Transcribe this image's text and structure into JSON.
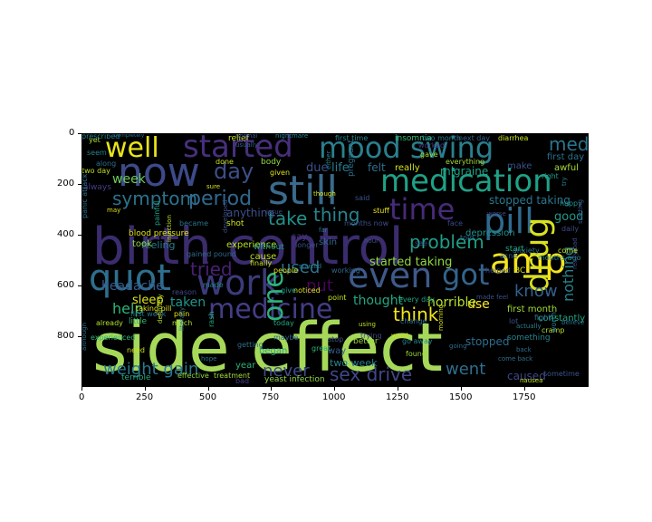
{
  "image": {
    "x_ticks": [
      "0",
      "250",
      "500",
      "750",
      "1000",
      "1250",
      "1500",
      "1750"
    ],
    "y_ticks": [
      "0",
      "200",
      "400",
      "600",
      "800"
    ],
    "background_color": "#000000",
    "words": [
      {
        "text": "side effect",
        "color": "#a6d95a"
      },
      {
        "text": "birth control",
        "color": "#3b2c6e"
      },
      {
        "text": "amp",
        "color": "#f5e31f"
      },
      {
        "text": "pill",
        "color": "#2f6a8e"
      },
      {
        "text": "now",
        "color": "#3d4a8a"
      },
      {
        "text": "still",
        "color": "#3a6a8c"
      },
      {
        "text": "medication",
        "color": "#1fa187"
      },
      {
        "text": "mood swing",
        "color": "#2a7f8e"
      },
      {
        "text": "quot",
        "color": "#2d6f8e"
      },
      {
        "text": "work",
        "color": "#3b3b7c"
      },
      {
        "text": "even",
        "color": "#3e5a8a"
      },
      {
        "text": "got",
        "color": "#33638d"
      },
      {
        "text": "drug",
        "color": "#d9e020"
      },
      {
        "text": "medicine",
        "color": "#433d84"
      },
      {
        "text": "started",
        "color": "#472f7d"
      },
      {
        "text": "well",
        "color": "#e8e419"
      },
      {
        "text": "time",
        "color": "#472a7a"
      },
      {
        "text": "day",
        "color": "#3d4e8a"
      },
      {
        "text": "one",
        "color": "#2db27d"
      },
      {
        "text": "period",
        "color": "#31688e"
      },
      {
        "text": "symptom",
        "color": "#2c728e"
      },
      {
        "text": "thing",
        "color": "#25848e"
      },
      {
        "text": "take",
        "color": "#20928c"
      },
      {
        "text": "problem",
        "color": "#1f9e89"
      },
      {
        "text": "tried",
        "color": "#482173"
      },
      {
        "text": "think",
        "color": "#f1e51d"
      },
      {
        "text": "weight gain",
        "color": "#2a788e"
      },
      {
        "text": "sex drive",
        "color": "#3f4788"
      },
      {
        "text": "never",
        "color": "#3e4c8a"
      },
      {
        "text": "went",
        "color": "#2e6e8e"
      },
      {
        "text": "nothing",
        "color": "#26828e"
      },
      {
        "text": "know",
        "color": "#34608d"
      },
      {
        "text": "med",
        "color": "#2a768e"
      },
      {
        "text": "used",
        "color": "#2c738e"
      },
      {
        "text": "put",
        "color": "#450559"
      },
      {
        "text": "help",
        "color": "#2fb47c"
      },
      {
        "text": "taken",
        "color": "#1f968b"
      },
      {
        "text": "headache",
        "color": "#375b8d"
      },
      {
        "text": "sleep",
        "color": "#dde318"
      },
      {
        "text": "thought",
        "color": "#22a884"
      },
      {
        "text": "horrible",
        "color": "#b5de2b"
      },
      {
        "text": "started taking",
        "color": "#8fd744"
      },
      {
        "text": "felt",
        "color": "#2e6f8e"
      },
      {
        "text": "life",
        "color": "#287c8e"
      },
      {
        "text": "due",
        "color": "#3b518b"
      },
      {
        "text": "week",
        "color": "#6ccd5a"
      },
      {
        "text": "good",
        "color": "#1f9a8a"
      },
      {
        "text": "feeling",
        "color": "#287d8e"
      },
      {
        "text": "stopped taking",
        "color": "#2a778e"
      },
      {
        "text": "migraine",
        "color": "#20a386"
      },
      {
        "text": "depression",
        "color": "#21918c"
      },
      {
        "text": "anything",
        "color": "#3c4f8a"
      },
      {
        "text": "experience",
        "color": "#b8de29"
      },
      {
        "text": "took",
        "color": "#8bd646"
      },
      {
        "text": "blood pressure",
        "color": "#e2e418"
      },
      {
        "text": "stopped",
        "color": "#2f6c8e"
      },
      {
        "text": "use",
        "color": "#fde725"
      },
      {
        "text": "first month",
        "color": "#a2da37"
      },
      {
        "text": "caused",
        "color": "#3f4889"
      },
      {
        "text": "two week",
        "color": "#26818e"
      },
      {
        "text": "way",
        "color": "#365c8d"
      },
      {
        "text": "year",
        "color": "#2db27d"
      },
      {
        "text": "began",
        "color": "#27ad81"
      },
      {
        "text": "say",
        "color": "#46337f"
      },
      {
        "text": "cause",
        "color": "#c0df25"
      },
      {
        "text": "skin",
        "color": "#31688e"
      },
      {
        "text": "really",
        "color": "#d2e21b"
      },
      {
        "text": "make",
        "color": "#3b528b"
      },
      {
        "text": "first day",
        "color": "#2c728e"
      },
      {
        "text": "awful",
        "color": "#a5db36"
      },
      {
        "text": "two day",
        "color": "#c2df23"
      },
      {
        "text": "insomnia",
        "color": "#3aba76"
      },
      {
        "text": "two month",
        "color": "#287d8e"
      },
      {
        "text": "next day",
        "color": "#34618d"
      },
      {
        "text": "diarrhea",
        "color": "#c8e020"
      },
      {
        "text": "first time",
        "color": "#25858e"
      },
      {
        "text": "gave",
        "color": "#addc30"
      },
      {
        "text": "worked",
        "color": "#433e85"
      },
      {
        "text": "everything",
        "color": "#a8db34"
      },
      {
        "text": "nightmare",
        "color": "#26828e"
      },
      {
        "text": "relief",
        "color": "#c5e021"
      },
      {
        "text": "yet",
        "color": "#b0dd2f"
      },
      {
        "text": "seem",
        "color": "#26828e"
      },
      {
        "text": "completely",
        "color": "#2d708e"
      },
      {
        "text": "normal",
        "color": "#3b528b"
      },
      {
        "text": "usually",
        "color": "#33638d"
      },
      {
        "text": "done",
        "color": "#cae11f"
      },
      {
        "text": "body",
        "color": "#8fd744"
      },
      {
        "text": "given",
        "color": "#dde318"
      },
      {
        "text": "stuff",
        "color": "#ece51b"
      },
      {
        "text": "said",
        "color": "#39568c"
      },
      {
        "text": "months now",
        "color": "#3c4f8a"
      },
      {
        "text": "face",
        "color": "#3e4989"
      },
      {
        "text": "told",
        "color": "#2d708e"
      },
      {
        "text": "see",
        "color": "#3f4788"
      },
      {
        "text": "found",
        "color": "#9dd93b"
      },
      {
        "text": "going",
        "color": "#2f6c8e"
      },
      {
        "text": "gained pound",
        "color": "#31688e"
      },
      {
        "text": "reason",
        "color": "#3e4a89"
      },
      {
        "text": "made",
        "color": "#26818e"
      },
      {
        "text": "started",
        "color": "#2a788e"
      },
      {
        "text": "shot",
        "color": "#d5e21a"
      },
      {
        "text": "became",
        "color": "#2c728e"
      },
      {
        "text": "months ago",
        "color": "#25848e"
      },
      {
        "text": "start",
        "color": "#22a884"
      },
      {
        "text": "made feel",
        "color": "#3c508b"
      },
      {
        "text": "panic attack",
        "color": "#2c728e"
      },
      {
        "text": "injection",
        "color": "#c0df25"
      },
      {
        "text": "developed",
        "color": "#3b528b"
      },
      {
        "text": "without",
        "color": "#1f9e89"
      },
      {
        "text": "people",
        "color": "#dde318"
      },
      {
        "text": "painful",
        "color": "#20a386"
      },
      {
        "text": "taking pill",
        "color": "#e5e419"
      },
      {
        "text": "already",
        "color": "#b5de2b"
      },
      {
        "text": "experienced",
        "color": "#2fb47c"
      },
      {
        "text": "need",
        "color": "#c8e020"
      },
      {
        "text": "terrible",
        "color": "#25ab82"
      },
      {
        "text": "although",
        "color": "#2d708e"
      },
      {
        "text": "effective",
        "color": "#90d743"
      },
      {
        "text": "treatment",
        "color": "#a5db36"
      },
      {
        "text": "bad",
        "color": "#433e85"
      },
      {
        "text": "yeast infection",
        "color": "#8fd744"
      },
      {
        "text": "today",
        "color": "#22a884"
      },
      {
        "text": "noticed",
        "color": "#d8e219"
      },
      {
        "text": "maybe",
        "color": "#31688e"
      },
      {
        "text": "stop",
        "color": "#3b528b"
      },
      {
        "text": "great",
        "color": "#2fb47c"
      },
      {
        "text": "better",
        "color": "#9dd93b"
      },
      {
        "text": "trying",
        "color": "#3e4a89"
      },
      {
        "text": "using",
        "color": "#c2df23"
      },
      {
        "text": "change",
        "color": "#2e6e8e"
      },
      {
        "text": "go away",
        "color": "#26828e"
      },
      {
        "text": "morning",
        "color": "#d5e21a"
      },
      {
        "text": "something",
        "color": "#25858e"
      },
      {
        "text": "cramp",
        "color": "#b5de2b"
      },
      {
        "text": "back",
        "color": "#2f6c8e"
      },
      {
        "text": "sometime",
        "color": "#39568c"
      },
      {
        "text": "nausea",
        "color": "#c5e021"
      },
      {
        "text": "believe",
        "color": "#2d708e"
      },
      {
        "text": "happy",
        "color": "#21918c"
      },
      {
        "text": "daily",
        "color": "#3e4a89"
      },
      {
        "text": "come",
        "color": "#cae11f"
      },
      {
        "text": "worth",
        "color": "#2a788e"
      },
      {
        "text": "constantly",
        "color": "#22a884"
      },
      {
        "text": "lot",
        "color": "#3b518b"
      },
      {
        "text": "fight",
        "color": "#2c728e"
      },
      {
        "text": "right",
        "color": "#1f9a8a"
      },
      {
        "text": "acne",
        "color": "#31688e"
      },
      {
        "text": "BC",
        "color": "#d2e21b"
      },
      {
        "text": "helped",
        "color": "#3c4f8a"
      },
      {
        "text": "anxiety",
        "color": "#2c728e"
      },
      {
        "text": "actually",
        "color": "#26828e"
      },
      {
        "text": "first week",
        "color": "#2d708e"
      },
      {
        "text": "pain",
        "color": "#ece51b"
      },
      {
        "text": "little",
        "color": "#3aba76"
      },
      {
        "text": "much",
        "color": "#b0dd2f"
      },
      {
        "text": "getting",
        "color": "#2e6e8e"
      },
      {
        "text": "finally",
        "color": "#c8e020"
      },
      {
        "text": "far",
        "color": "#2a788e"
      },
      {
        "text": "longer",
        "color": "#3c508b"
      },
      {
        "text": "though",
        "color": "#d5e21a"
      },
      {
        "text": "either",
        "color": "#25848e"
      },
      {
        "text": "pregnant",
        "color": "#2d708e"
      },
      {
        "text": "worse",
        "color": "#3f4788"
      },
      {
        "text": "hour",
        "color": "#3b528b"
      },
      {
        "text": "try",
        "color": "#26818e"
      },
      {
        "text": "come back",
        "color": "#2c728e"
      },
      {
        "text": "every day",
        "color": "#22a884"
      },
      {
        "text": "point",
        "color": "#c5e021"
      },
      {
        "text": "working",
        "color": "#31688e"
      },
      {
        "text": "give",
        "color": "#1f9e89"
      },
      {
        "text": "issue",
        "color": "#3e4a89"
      },
      {
        "text": "want",
        "color": "#cae11f"
      },
      {
        "text": "may",
        "color": "#dde318"
      },
      {
        "text": "along",
        "color": "#2e6e8e"
      },
      {
        "text": "always",
        "color": "#433e85"
      },
      {
        "text": "sure",
        "color": "#d8e219"
      },
      {
        "text": "starting",
        "color": "#3b528b"
      },
      {
        "text": "hope",
        "color": "#2a788e"
      },
      {
        "text": "rash",
        "color": "#25ab82"
      },
      {
        "text": "literally",
        "color": "#2c728e"
      },
      {
        "text": "definitely",
        "color": "#b5de2b"
      },
      {
        "text": "really bad",
        "color": "#3e4a89"
      },
      {
        "text": "prescribed",
        "color": "#26828e"
      }
    ]
  }
}
